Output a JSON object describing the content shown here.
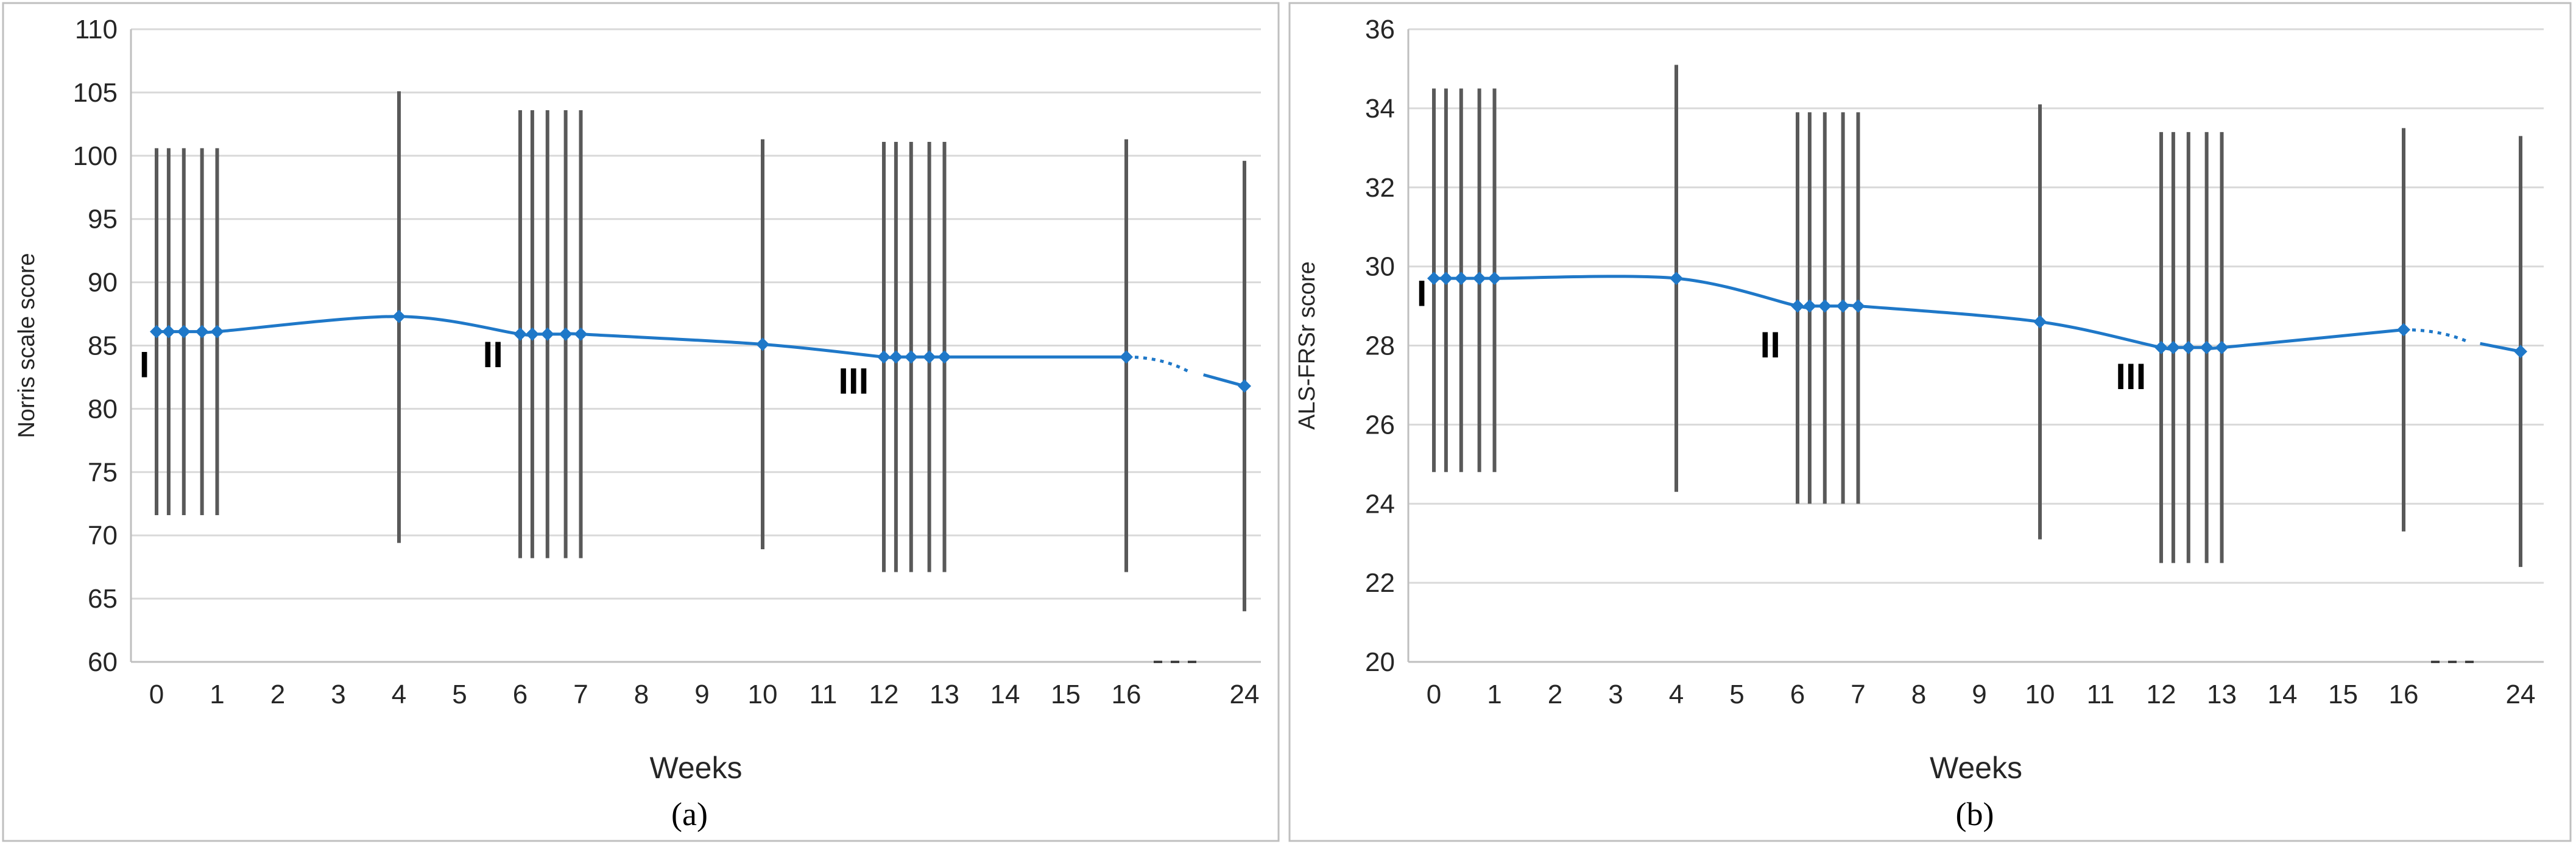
{
  "chart_data": [
    {
      "type": "line",
      "caption": "(a)",
      "xlabel": "Weeks",
      "ylabel": "Norris scale score",
      "ylim": [
        60,
        110
      ],
      "y_ticks": [
        60,
        65,
        70,
        75,
        80,
        85,
        90,
        95,
        100,
        105,
        110
      ],
      "x_tick_labels": [
        "0",
        "1",
        "2",
        "3",
        "4",
        "5",
        "6",
        "7",
        "8",
        "9",
        "10",
        "11",
        "12",
        "13",
        "14",
        "15",
        "16",
        "24"
      ],
      "grid": true,
      "color": "#1f78c8",
      "series": [
        {
          "x": [
            0,
            0.2,
            0.45,
            0.75,
            1,
            4,
            6,
            6.2,
            6.45,
            6.75,
            7,
            10,
            12,
            12.2,
            12.45,
            12.75,
            13,
            16,
            24
          ],
          "values": [
            86.1,
            86.1,
            86.1,
            86.1,
            86.1,
            87.3,
            85.9,
            85.9,
            85.9,
            85.9,
            85.9,
            85.1,
            84.1,
            84.1,
            84.1,
            84.1,
            84.1,
            84.1,
            81.8
          ],
          "err_low": [
            71.6,
            71.6,
            71.6,
            71.6,
            71.6,
            69.4,
            68.2,
            68.2,
            68.2,
            68.2,
            68.2,
            68.9,
            67.1,
            67.1,
            67.1,
            67.1,
            67.1,
            67.1,
            64.0
          ],
          "err_high": [
            100.6,
            100.6,
            100.6,
            100.6,
            100.6,
            105.1,
            103.6,
            103.6,
            103.6,
            103.6,
            103.6,
            101.3,
            101.1,
            101.1,
            101.1,
            101.1,
            101.1,
            101.3,
            99.6
          ]
        }
      ],
      "annotations": [
        {
          "text": "I",
          "x": -0.2,
          "y": 82.5
        },
        {
          "text": "II",
          "x": 5.55,
          "y": 83.3
        },
        {
          "text": "III",
          "x": 11.5,
          "y": 81.2
        }
      ]
    },
    {
      "type": "line",
      "caption": "(b)",
      "xlabel": "Weeks",
      "ylabel": "ALS-FRSr score",
      "ylim": [
        20,
        36
      ],
      "y_ticks": [
        20,
        22,
        24,
        26,
        28,
        30,
        32,
        34,
        36
      ],
      "x_tick_labels": [
        "0",
        "1",
        "2",
        "3",
        "4",
        "5",
        "6",
        "7",
        "8",
        "9",
        "10",
        "11",
        "12",
        "13",
        "14",
        "15",
        "16",
        "24"
      ],
      "grid": true,
      "color": "#1f78c8",
      "series": [
        {
          "x": [
            0,
            0.2,
            0.45,
            0.75,
            1,
            4,
            6,
            6.2,
            6.45,
            6.75,
            7,
            10,
            12,
            12.2,
            12.45,
            12.75,
            13,
            16,
            24
          ],
          "values": [
            29.7,
            29.7,
            29.7,
            29.7,
            29.7,
            29.7,
            29.0,
            29.0,
            29.0,
            29.0,
            29.0,
            28.6,
            27.95,
            27.95,
            27.95,
            27.95,
            27.95,
            28.4,
            27.85
          ],
          "err_low": [
            24.8,
            24.8,
            24.8,
            24.8,
            24.8,
            24.3,
            24.0,
            24.0,
            24.0,
            24.0,
            24.0,
            23.1,
            22.5,
            22.5,
            22.5,
            22.5,
            22.5,
            23.3,
            22.4
          ],
          "err_high": [
            34.5,
            34.5,
            34.5,
            34.5,
            34.5,
            35.1,
            33.9,
            33.9,
            33.9,
            33.9,
            33.9,
            34.1,
            33.4,
            33.4,
            33.4,
            33.4,
            33.4,
            33.5,
            33.3
          ]
        }
      ],
      "annotations": [
        {
          "text": "I",
          "x": -0.2,
          "y": 29.0
        },
        {
          "text": "II",
          "x": 5.55,
          "y": 27.7
        },
        {
          "text": "III",
          "x": 11.5,
          "y": 26.9
        }
      ]
    }
  ]
}
